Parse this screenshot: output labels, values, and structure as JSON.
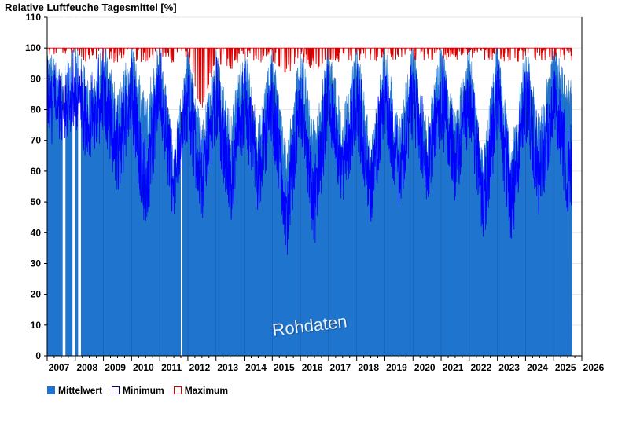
{
  "chart_data": {
    "type": "bar",
    "title": "Relative Luftfeuche Tagesmittel [%]",
    "watermark": "Rohdaten",
    "ylim": [
      0,
      110
    ],
    "y_ticks": [
      0,
      10,
      20,
      30,
      40,
      50,
      60,
      70,
      80,
      90,
      100,
      110
    ],
    "x_tick_labels": [
      "2007",
      "2008",
      "2009",
      "2010",
      "2011",
      "2012",
      "2013",
      "2014",
      "2015",
      "2016",
      "2017",
      "2018",
      "2019",
      "2020",
      "2021",
      "2022",
      "2023",
      "2024",
      "2025",
      "2026"
    ],
    "xlim": [
      2007,
      2026
    ],
    "grid": "horizontal",
    "colors": {
      "mean": "#1f74cd",
      "minimum": "#0000ff",
      "maximum": "#dd0000",
      "gap": "#ffffff"
    },
    "legend": [
      "Mittelwert",
      "Minimum",
      "Maximum"
    ],
    "legend_position": "bottom-left",
    "series": [
      {
        "name": "Mittelwert",
        "x": [
          2007.0,
          2007.5,
          2008.0,
          2008.5,
          2009.0,
          2009.5,
          2010.0,
          2010.5,
          2011.0,
          2011.5,
          2012.0,
          2012.5,
          2013.0,
          2013.5,
          2014.0,
          2014.5,
          2015.0,
          2015.5,
          2016.0,
          2016.5,
          2017.0,
          2017.5,
          2018.0,
          2018.5,
          2019.0,
          2019.5,
          2020.0,
          2020.5,
          2021.0,
          2021.5,
          2022.0,
          2022.5,
          2023.0,
          2023.5,
          2024.0,
          2024.5,
          2025.0,
          2025.5
        ],
        "values": [
          95,
          86,
          96,
          84,
          97,
          80,
          96,
          78,
          97,
          62,
          96,
          68,
          95,
          72,
          96,
          70,
          95,
          62,
          96,
          70,
          96,
          72,
          97,
          64,
          97,
          70,
          97,
          70,
          97,
          72,
          97,
          60,
          97,
          62,
          97,
          72,
          96,
          84
        ]
      },
      {
        "name": "Minimum",
        "x": [
          2007.0,
          2007.5,
          2008.0,
          2008.5,
          2009.0,
          2009.5,
          2010.0,
          2010.5,
          2011.0,
          2011.5,
          2012.0,
          2012.5,
          2013.0,
          2013.5,
          2014.0,
          2014.5,
          2015.0,
          2015.5,
          2016.0,
          2016.5,
          2017.0,
          2017.5,
          2018.0,
          2018.5,
          2019.0,
          2019.5,
          2020.0,
          2020.5,
          2021.0,
          2021.5,
          2022.0,
          2022.5,
          2023.0,
          2023.5,
          2024.0,
          2024.5,
          2025.0,
          2025.5
        ],
        "values": [
          76,
          72,
          80,
          66,
          78,
          58,
          76,
          45,
          80,
          48,
          76,
          48,
          76,
          45,
          75,
          52,
          74,
          35,
          76,
          40,
          76,
          54,
          75,
          48,
          76,
          53,
          76,
          55,
          76,
          56,
          76,
          40,
          76,
          40,
          76,
          50,
          76,
          52
        ]
      },
      {
        "name": "Maximum",
        "x": [
          2007.0,
          2007.5,
          2008.0,
          2008.5,
          2009.0,
          2009.5,
          2010.0,
          2010.5,
          2011.0,
          2011.5,
          2012.0,
          2012.5,
          2013.0,
          2013.5,
          2014.0,
          2014.5,
          2015.0,
          2015.5,
          2016.0,
          2016.5,
          2017.0,
          2017.5,
          2018.0,
          2018.5,
          2019.0,
          2019.5,
          2020.0,
          2020.5,
          2021.0,
          2021.5,
          2022.0,
          2022.5,
          2023.0,
          2023.5,
          2024.0,
          2024.5,
          2025.0,
          2025.5
        ],
        "values": [
          100,
          100,
          100,
          99,
          100,
          99,
          100,
          99,
          100,
          99,
          100,
          82,
          100,
          96,
          100,
          99,
          100,
          94,
          100,
          96,
          100,
          99,
          100,
          99,
          100,
          100,
          100,
          100,
          100,
          100,
          100,
          100,
          100,
          99,
          100,
          99,
          100,
          99
        ]
      }
    ],
    "data_gaps": [
      [
        2007.55,
        2007.65
      ],
      [
        2007.9,
        2008.0
      ],
      [
        2008.1,
        2008.2
      ],
      [
        2011.75,
        2011.8
      ]
    ]
  }
}
